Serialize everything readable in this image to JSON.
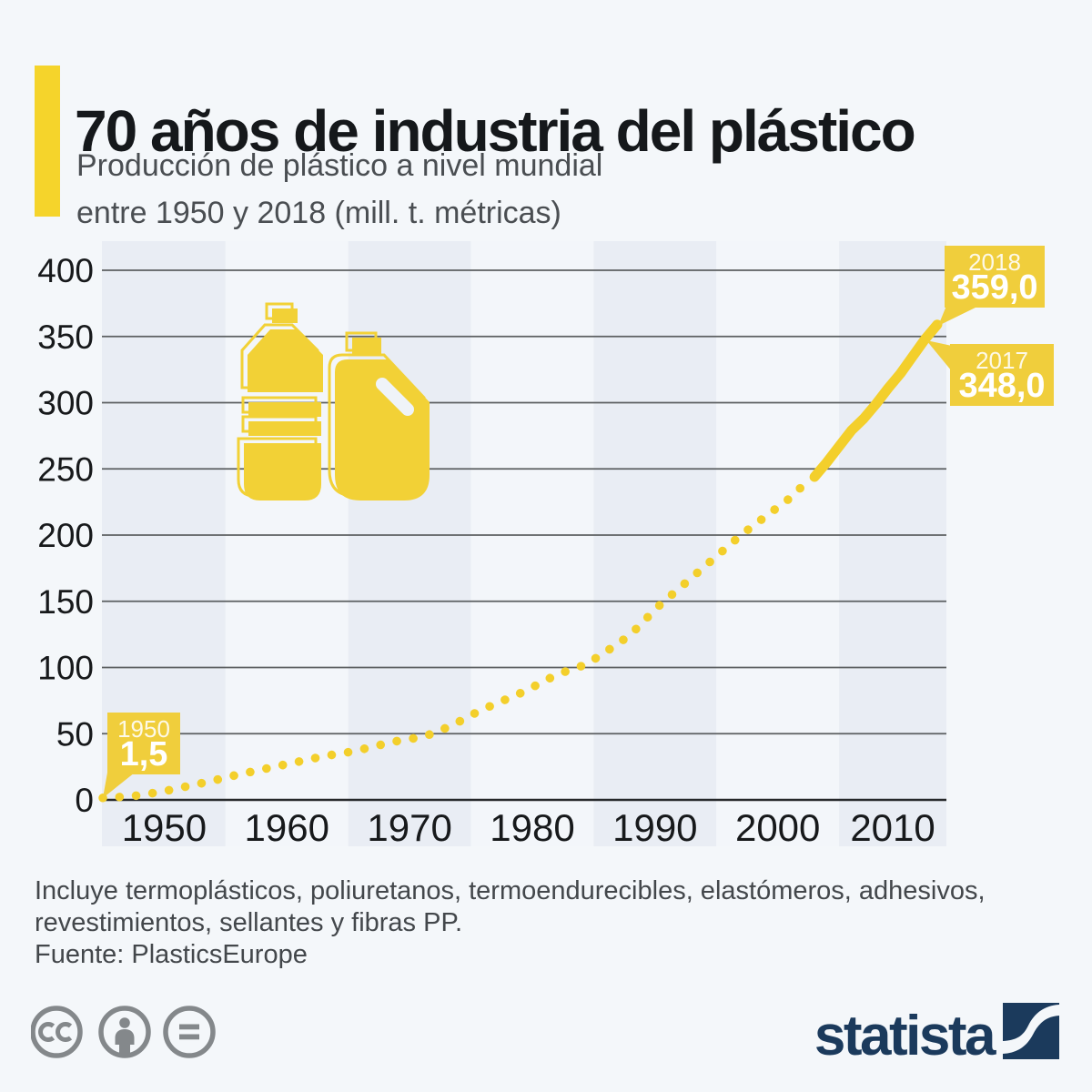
{
  "header": {
    "title": "70 años de industria del plástico",
    "subtitle_line1": "Producción de plástico a nivel mundial",
    "subtitle_line2": "entre 1950 y 2018 (mill. t. métricas)"
  },
  "chart_data": {
    "type": "line",
    "title": "70 años de industria del plástico",
    "subtitle": "Producción de plástico a nivel mundial entre 1950 y 2018 (mill. t. métricas)",
    "x_range": [
      1950,
      2018
    ],
    "x_step_years": 1,
    "values": [
      1.5,
      2,
      2.5,
      3.5,
      5,
      6.5,
      8.5,
      10.5,
      12.5,
      14.5,
      17,
      19,
      21,
      23,
      25,
      27,
      29,
      31,
      33,
      34.5,
      36,
      38,
      40,
      42.5,
      44.5,
      46,
      47.5,
      50.5,
      54.5,
      59,
      64,
      68.5,
      72.5,
      76.5,
      80.5,
      85,
      90,
      94.5,
      98,
      101,
      106,
      112,
      118,
      125,
      134,
      144,
      152,
      160,
      168,
      176,
      184,
      192,
      200,
      207,
      214,
      221,
      228,
      237,
      244,
      255,
      267,
      279,
      288,
      299,
      311,
      322,
      335,
      348,
      359
    ],
    "dotted_until_year": 2007,
    "solid_from_year": 2008,
    "ylim": [
      0,
      400
    ],
    "y_ticks": [
      400,
      350,
      300,
      250,
      200,
      150,
      100,
      50,
      0
    ],
    "x_ticks": [
      "1950",
      "1960",
      "1970",
      "1980",
      "1990",
      "2000",
      "2010"
    ],
    "grid": true,
    "legend": "none",
    "callouts": [
      {
        "year_label": "1950",
        "value_label": "1,5",
        "year": 1950,
        "value": 1.5
      },
      {
        "year_label": "2017",
        "value_label": "348,0",
        "year": 2017,
        "value": 348
      },
      {
        "year_label": "2018",
        "value_label": "359,0",
        "year": 2018,
        "value": 359
      }
    ],
    "colors": {
      "line": "#F3CF2B",
      "callout_bg": "#F0CE3C",
      "callout_text": "#FFFFFF",
      "grid": "#5C5F61",
      "axis": "#26282A",
      "band_dark": "#E9EDF4",
      "band_light": "#F3F6FA",
      "tick": "#17191B",
      "icon_yellow": "#F2D136"
    }
  },
  "icons": {
    "chart_decoration": "plastic-bottles-icon",
    "license": [
      "cc-icon",
      "attribution-icon",
      "no-derivatives-icon"
    ],
    "brand": "statista-logo"
  },
  "footer": {
    "note_line1": "Incluye termoplásticos, poliuretanos, termoendurecibles, elastómeros, adhesivos,",
    "note_line2": "revestimientos, sellantes y fibras PP.",
    "source": "Fuente: PlasticsEurope"
  },
  "branding": {
    "logo_text": "statista"
  }
}
